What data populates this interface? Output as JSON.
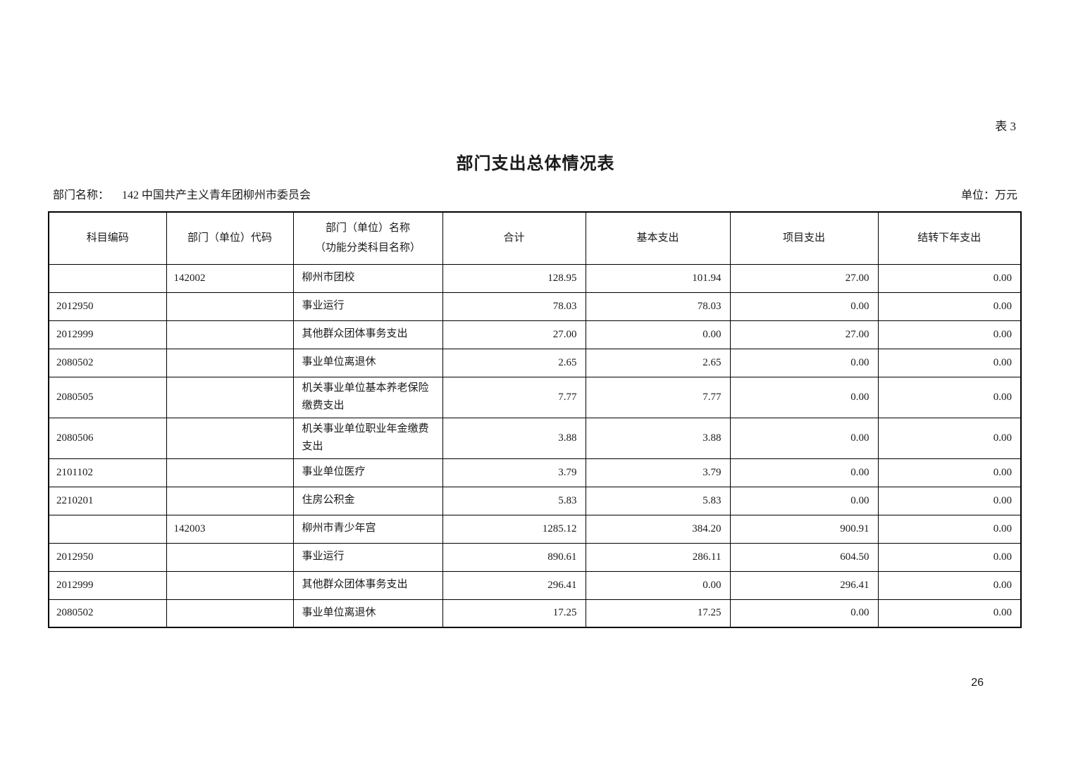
{
  "page": {
    "table_ref": "表 3",
    "title": "部门支出总体情况表",
    "dept_name_label": "部门名称：",
    "dept_name_value": "142 中国共产主义青年团柳州市委员会",
    "unit_label": "单位：万元",
    "page_number": "26"
  },
  "table": {
    "headers": {
      "subject_code": "科目编码",
      "dept_code": "部门（单位）代码",
      "dept_name_line1": "部门（单位）名称",
      "dept_name_line2": "（功能分类科目名称）",
      "total": "合计",
      "basic": "基本支出",
      "project": "项目支出",
      "carryover": "结转下年支出"
    },
    "rows": [
      [
        "",
        "142002",
        "柳州市团校",
        "128.95",
        "101.94",
        "27.00",
        "0.00"
      ],
      [
        "2012950",
        "",
        "事业运行",
        "78.03",
        "78.03",
        "0.00",
        "0.00"
      ],
      [
        "2012999",
        "",
        "其他群众团体事务支出",
        "27.00",
        "0.00",
        "27.00",
        "0.00"
      ],
      [
        "2080502",
        "",
        "事业单位离退休",
        "2.65",
        "2.65",
        "0.00",
        "0.00"
      ],
      [
        "2080505",
        "",
        "机关事业单位基本养老保险缴费支出",
        "7.77",
        "7.77",
        "0.00",
        "0.00"
      ],
      [
        "2080506",
        "",
        "机关事业单位职业年金缴费支出",
        "3.88",
        "3.88",
        "0.00",
        "0.00"
      ],
      [
        "2101102",
        "",
        "事业单位医疗",
        "3.79",
        "3.79",
        "0.00",
        "0.00"
      ],
      [
        "2210201",
        "",
        "住房公积金",
        "5.83",
        "5.83",
        "0.00",
        "0.00"
      ],
      [
        "",
        "142003",
        "柳州市青少年宫",
        "1285.12",
        "384.20",
        "900.91",
        "0.00"
      ],
      [
        "2012950",
        "",
        "事业运行",
        "890.61",
        "286.11",
        "604.50",
        "0.00"
      ],
      [
        "2012999",
        "",
        "其他群众团体事务支出",
        "296.41",
        "0.00",
        "296.41",
        "0.00"
      ],
      [
        "2080502",
        "",
        "事业单位离退休",
        "17.25",
        "17.25",
        "0.00",
        "0.00"
      ]
    ]
  }
}
